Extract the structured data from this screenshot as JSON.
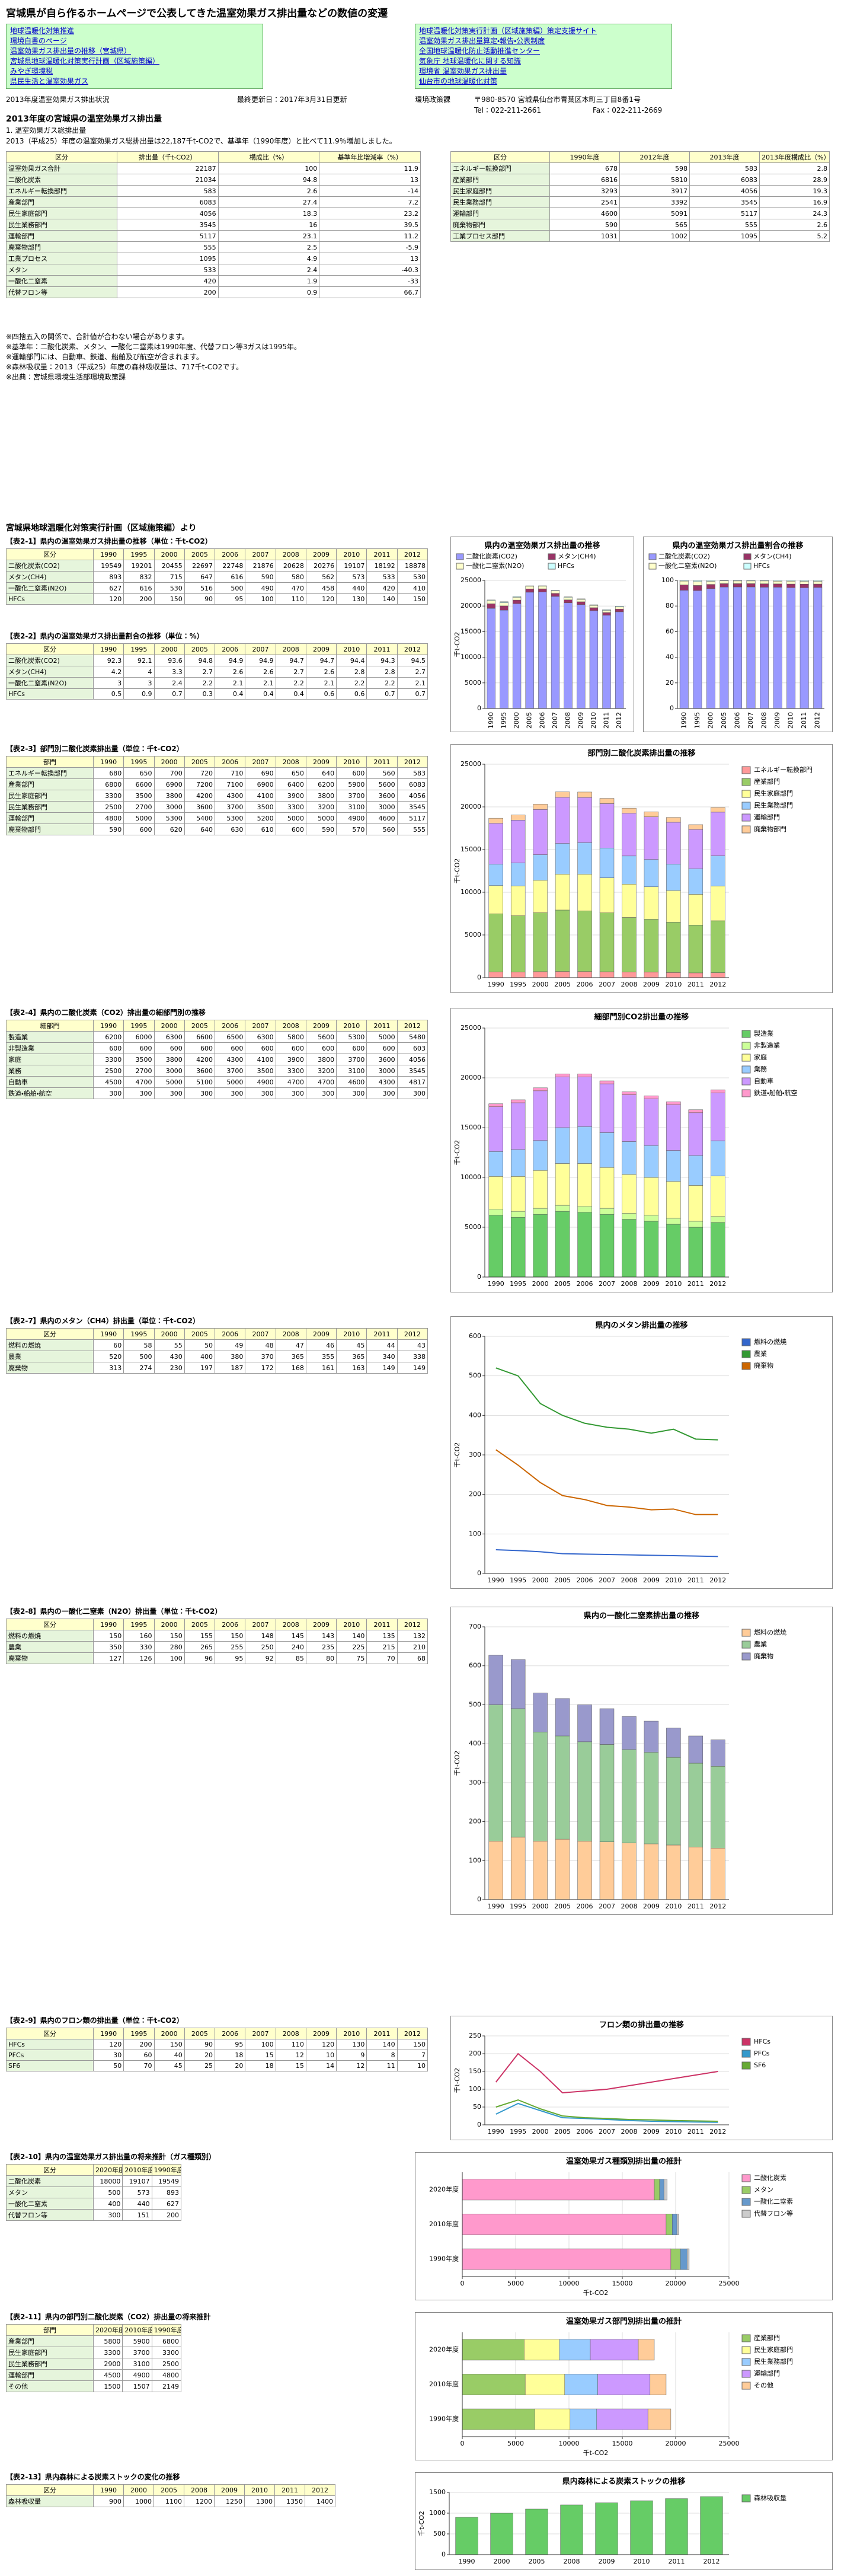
{
  "header": {
    "title": "宮城県が自ら作るホームページで公表してきた温室効果ガス排出量などの数値の変遷"
  },
  "links": {
    "left": [
      "地球温暖化対策推進",
      "環境白書のページ",
      "温室効果ガス排出量の推移（宮城県）",
      "宮城県地球温暖化対策実行計画（区域施策編）",
      "みやぎ環境税",
      "県民生活と温室効果ガス"
    ],
    "right": [
      "地球温暖化対策実行計画（区域施策編）策定支援サイト",
      "温室効果ガス排出量算定・報告・公表制度",
      "全国地球温暖化防止活動推進センター",
      "気象庁 地球温暖化に関する知識",
      "環境省 温室効果ガス排出量",
      "仙台市の地球温暖化対策"
    ]
  },
  "info": {
    "page": "2013年度温室効果ガス排出状況",
    "updated": "最終更新日：2017年3月31日更新",
    "division": "環境政策課",
    "address": "〒980-8570 宮城県仙台市青葉区本町三丁目8番1号",
    "tel": "Tel：022-211-2661",
    "fax": "Fax：022-211-2669",
    "heading": "2013年度の宮城県の温室効果ガス排出量",
    "subheading": "1. 温室効果ガス総排出量",
    "intro": "2013（平成25）年度の温室効果ガス総排出量は22,187千t-CO2で、基準年（1990年度）と比べて11.9％増加しました。",
    "notes": [
      "※四捨五入の関係で、合計値が合わない場合があります。",
      "※基準年：二酸化炭素、メタン、一酸化二窒素は1990年度、代替フロン等3ガスは1995年。",
      "※運輸部門には、自動車、鉄道、船舶及び航空が含まれます。",
      "※森林吸収量：2013（平成25）年度の森林吸収量は、717千t-CO2です。",
      "※出典：宮城県環境生活部環境政策課"
    ],
    "plan": "宮城県地球温暖化対策実行計画（区域施策編）より"
  },
  "summary": {
    "columns": [
      "区分",
      "排出量（千t-CO2）",
      "構成比（%）",
      "基準年比増減率（%）"
    ],
    "rows": [
      [
        "温室効果ガス合計",
        22187,
        100.0,
        11.9
      ],
      [
        "二酸化炭素",
        21034,
        94.8,
        13.0
      ],
      [
        "エネルギー転換部門",
        583,
        2.6,
        -14.0
      ],
      [
        "産業部門",
        6083,
        27.4,
        7.2
      ],
      [
        "民生家庭部門",
        4056,
        18.3,
        23.2
      ],
      [
        "民生業務部門",
        3545,
        16.0,
        39.5
      ],
      [
        "運輸部門",
        5117,
        23.1,
        11.2
      ],
      [
        "廃棄物部門",
        555,
        2.5,
        -5.9
      ],
      [
        "工業プロセス",
        1095,
        4.9,
        13.0
      ],
      [
        "メタン",
        533,
        2.4,
        -40.3
      ],
      [
        "一酸化二窒素",
        420,
        1.9,
        -33.0
      ],
      [
        "代替フロン等",
        200,
        0.9,
        66.7
      ]
    ]
  },
  "summary2": {
    "columns": [
      "区分",
      "1990年度",
      "2012年度",
      "2013年度",
      "2013年度構成比（%）"
    ],
    "rows": [
      [
        "エネルギー転換部門",
        678,
        598,
        583,
        2.8
      ],
      [
        "産業部門",
        6816,
        5810,
        6083,
        28.9
      ],
      [
        "民生家庭部門",
        3293,
        3917,
        4056,
        19.3
      ],
      [
        "民生業務部門",
        2541,
        3392,
        3545,
        16.9
      ],
      [
        "運輸部門",
        4600,
        5091,
        5117,
        24.3
      ],
      [
        "廃棄物部門",
        590,
        565,
        555,
        2.6
      ],
      [
        "工業プロセス部門",
        1031,
        1002,
        1095,
        5.2
      ]
    ]
  },
  "sections": [
    {
      "title": "【表2-1】県内の温室効果ガス排出量の推移（単位：千t-CO2）",
      "corner": "区分"
    },
    {
      "title": "【表2-2】県内の温室効果ガス排出量割合の推移（単位：%）",
      "corner": "区分"
    },
    {
      "title": "【表2-3】部門別二酸化炭素排出量（単位：千t-CO2）",
      "corner": "部門"
    },
    {
      "title": "【表2-4】県内の二酸化炭素（CO2）排出量の細部門別の推移",
      "corner": "細部門"
    },
    {
      "title": "【表2-7】県内のメタン（CH4）排出量（単位：千t-CO2）",
      "corner": "区分"
    },
    {
      "title": "【表2-8】県内の一酸化二窒素（N2O）排出量（単位：千t-CO2）",
      "corner": "区分"
    },
    {
      "title": "【表2-9】県内のフロン類の排出量（単位：千t-CO2）",
      "corner": "区分"
    },
    {
      "title": "【表2-10】県内の温室効果ガス排出量の将来推計（ガス種類別）",
      "corner": "区分"
    },
    {
      "title": "【表2-11】県内の部門別二酸化炭素（CO2）排出量の将来推計",
      "corner": "部門"
    },
    {
      "title": "【表2-13】県内森林による炭素ストックの変化の推移",
      "corner": "区分"
    }
  ],
  "chart_data": [
    {
      "type": "bar",
      "title": "県内の温室効果ガス排出量の推移",
      "ylabel": "千t-CO2",
      "grid": true,
      "categories": [
        "1990",
        "1995",
        "2000",
        "2005",
        "2006",
        "2007",
        "2008",
        "2009",
        "2010",
        "2011",
        "2012"
      ],
      "ylim": [
        0,
        25000
      ],
      "yticks": [
        0,
        5000,
        10000,
        15000,
        20000,
        25000
      ],
      "series": [
        {
          "name": "二酸化炭素(CO2)",
          "color": "#9999ff",
          "values": [
            19549,
            19201,
            20455,
            22697,
            22748,
            21876,
            20628,
            20276,
            19107,
            18192,
            18878
          ]
        },
        {
          "name": "メタン(CH4)",
          "color": "#993366",
          "values": [
            893,
            832,
            715,
            647,
            616,
            590,
            580,
            562,
            573,
            533,
            530
          ]
        },
        {
          "name": "一酸化二窒素(N2O)",
          "color": "#ffffcc",
          "values": [
            627,
            616,
            530,
            516,
            500,
            490,
            470,
            458,
            440,
            420,
            410
          ]
        },
        {
          "name": "HFCs",
          "color": "#ccffff",
          "values": [
            120,
            200,
            150,
            90,
            95,
            100,
            110,
            120,
            130,
            140,
            150
          ]
        }
      ]
    },
    {
      "type": "bar",
      "title": "県内の温室効果ガス排出量割合の推移",
      "grid": true,
      "categories": [
        "1990",
        "1995",
        "2000",
        "2005",
        "2006",
        "2007",
        "2008",
        "2009",
        "2010",
        "2011",
        "2012"
      ],
      "ylim": [
        0,
        100
      ],
      "yticks": [
        0,
        20,
        40,
        60,
        80,
        100
      ],
      "series": [
        {
          "name": "二酸化炭素(CO2)",
          "color": "#9999ff",
          "values": [
            92.3,
            92.1,
            93.6,
            94.8,
            94.9,
            94.9,
            94.7,
            94.7,
            94.4,
            94.3,
            94.5
          ]
        },
        {
          "name": "メタン(CH4)",
          "color": "#993366",
          "values": [
            4.2,
            4.0,
            3.3,
            2.7,
            2.6,
            2.6,
            2.7,
            2.6,
            2.8,
            2.8,
            2.7
          ]
        },
        {
          "name": "一酸化二窒素(N2O)",
          "color": "#ffffcc",
          "values": [
            3.0,
            3.0,
            2.4,
            2.2,
            2.1,
            2.1,
            2.2,
            2.1,
            2.2,
            2.2,
            2.1
          ]
        },
        {
          "name": "HFCs",
          "color": "#ccffff",
          "values": [
            0.5,
            0.9,
            0.7,
            0.3,
            0.4,
            0.4,
            0.4,
            0.6,
            0.6,
            0.7,
            0.7
          ]
        }
      ]
    },
    {
      "type": "bar",
      "title": "部門別二酸化炭素排出量の推移",
      "ylabel": "千t-CO2",
      "grid": true,
      "categories": [
        "1990",
        "1995",
        "2000",
        "2005",
        "2006",
        "2007",
        "2008",
        "2009",
        "2010",
        "2011",
        "2012"
      ],
      "ylim": [
        0,
        25000
      ],
      "yticks": [
        0,
        5000,
        10000,
        15000,
        20000,
        25000
      ],
      "series": [
        {
          "name": "エネルギー転換部門",
          "color": "#ff9999",
          "values": [
            680,
            650,
            700,
            720,
            710,
            690,
            650,
            640,
            600,
            560,
            583
          ]
        },
        {
          "name": "産業部門",
          "color": "#99cc66",
          "values": [
            6800,
            6600,
            6900,
            7200,
            7100,
            6900,
            6400,
            6200,
            5900,
            5600,
            6083
          ]
        },
        {
          "name": "民生家庭部門",
          "color": "#ffff99",
          "values": [
            3300,
            3500,
            3800,
            4200,
            4300,
            4100,
            3900,
            3800,
            3700,
            3600,
            4056
          ]
        },
        {
          "name": "民生業務部門",
          "color": "#99ccff",
          "values": [
            2500,
            2700,
            3000,
            3600,
            3700,
            3500,
            3300,
            3200,
            3100,
            3000,
            3545
          ]
        },
        {
          "name": "運輸部門",
          "color": "#cc99ff",
          "values": [
            4800,
            5000,
            5300,
            5400,
            5300,
            5200,
            5000,
            5000,
            4900,
            4600,
            5117
          ]
        },
        {
          "name": "廃棄物部門",
          "color": "#ffcc99",
          "values": [
            590,
            600,
            620,
            640,
            630,
            610,
            600,
            590,
            570,
            560,
            555
          ]
        }
      ]
    },
    {
      "type": "bar",
      "title": "細部門別CO2排出量の推移",
      "ylabel": "千t-CO2",
      "grid": true,
      "categories": [
        "1990",
        "1995",
        "2000",
        "2005",
        "2006",
        "2007",
        "2008",
        "2009",
        "2010",
        "2011",
        "2012"
      ],
      "ylim": [
        0,
        25000
      ],
      "yticks": [
        0,
        5000,
        10000,
        15000,
        20000,
        25000
      ],
      "series": [
        {
          "name": "製造業",
          "color": "#66cc66",
          "values": [
            6200,
            6000,
            6300,
            6600,
            6500,
            6300,
            5800,
            5600,
            5300,
            5000,
            5480
          ]
        },
        {
          "name": "非製造業",
          "color": "#ccff99",
          "values": [
            600,
            600,
            600,
            600,
            600,
            600,
            600,
            600,
            600,
            600,
            603
          ]
        },
        {
          "name": "家庭",
          "color": "#ffff99",
          "values": [
            3300,
            3500,
            3800,
            4200,
            4300,
            4100,
            3900,
            3800,
            3700,
            3600,
            4056
          ]
        },
        {
          "name": "業務",
          "color": "#99ccff",
          "values": [
            2500,
            2700,
            3000,
            3600,
            3700,
            3500,
            3300,
            3200,
            3100,
            3000,
            3545
          ]
        },
        {
          "name": "自動車",
          "color": "#cc99ff",
          "values": [
            4500,
            4700,
            5000,
            5100,
            5000,
            4900,
            4700,
            4700,
            4600,
            4300,
            4817
          ]
        },
        {
          "name": "鉄道・船舶・航空",
          "color": "#ff99cc",
          "values": [
            300,
            300,
            300,
            300,
            300,
            300,
            300,
            300,
            300,
            300,
            300
          ]
        }
      ]
    },
    {
      "type": "line",
      "title": "県内のメタン排出量の推移",
      "ylabel": "千t-CO2",
      "grid": true,
      "categories": [
        "1990",
        "1995",
        "2000",
        "2005",
        "2006",
        "2007",
        "2008",
        "2009",
        "2010",
        "2011",
        "2012"
      ],
      "ylim": [
        0,
        600
      ],
      "yticks": [
        0,
        100,
        200,
        300,
        400,
        500,
        600
      ],
      "series": [
        {
          "name": "燃料の燃焼",
          "color": "#3366cc",
          "values": [
            60,
            58,
            55,
            50,
            49,
            48,
            47,
            46,
            45,
            44,
            43
          ]
        },
        {
          "name": "農業",
          "color": "#339933",
          "values": [
            520,
            500,
            430,
            400,
            380,
            370,
            365,
            355,
            365,
            340,
            338
          ]
        },
        {
          "name": "廃棄物",
          "color": "#cc6600",
          "values": [
            313,
            274,
            230,
            197,
            187,
            172,
            168,
            161,
            163,
            149,
            149
          ]
        }
      ]
    },
    {
      "type": "bar",
      "title": "県内の一酸化二窒素排出量の推移",
      "ylabel": "千t-CO2",
      "grid": true,
      "categories": [
        "1990",
        "1995",
        "2000",
        "2005",
        "2006",
        "2007",
        "2008",
        "2009",
        "2010",
        "2011",
        "2012"
      ],
      "ylim": [
        0,
        700
      ],
      "yticks": [
        0,
        100,
        200,
        300,
        400,
        500,
        600,
        700
      ],
      "series": [
        {
          "name": "燃料の燃焼",
          "color": "#ffcc99",
          "values": [
            150,
            160,
            150,
            155,
            150,
            148,
            145,
            143,
            140,
            135,
            132
          ]
        },
        {
          "name": "農業",
          "color": "#99cc99",
          "values": [
            350,
            330,
            280,
            265,
            255,
            250,
            240,
            235,
            225,
            215,
            210
          ]
        },
        {
          "name": "廃棄物",
          "color": "#9999cc",
          "values": [
            127,
            126,
            100,
            96,
            95,
            92,
            85,
            80,
            75,
            70,
            68
          ]
        }
      ]
    },
    {
      "type": "line",
      "title": "フロン類の排出量の推移",
      "ylabel": "千t-CO2",
      "grid": true,
      "categories": [
        "1990",
        "1995",
        "2000",
        "2005",
        "2006",
        "2007",
        "2008",
        "2009",
        "2010",
        "2011",
        "2012"
      ],
      "ylim": [
        0,
        250
      ],
      "yticks": [
        0,
        50,
        100,
        150,
        200,
        250
      ],
      "series": [
        {
          "name": "HFCs",
          "color": "#cc3366",
          "values": [
            120,
            200,
            150,
            90,
            95,
            100,
            110,
            120,
            130,
            140,
            150
          ]
        },
        {
          "name": "PFCs",
          "color": "#3399cc",
          "values": [
            30,
            60,
            40,
            20,
            18,
            15,
            12,
            10,
            9,
            8,
            7
          ]
        },
        {
          "name": "SF6",
          "color": "#66aa33",
          "values": [
            50,
            70,
            45,
            25,
            20,
            18,
            15,
            14,
            12,
            11,
            10
          ]
        }
      ]
    },
    {
      "type": "hbar",
      "title": "温室効果ガス種類別排出量の推計",
      "xlabel": "千t-CO2",
      "grid": true,
      "categories": [
        "2020年度",
        "2010年度",
        "1990年度"
      ],
      "xlim": [
        0,
        25000
      ],
      "xticks": [
        0,
        5000,
        10000,
        15000,
        20000,
        25000
      ],
      "series": [
        {
          "name": "二酸化炭素",
          "color": "#ff99cc",
          "values": [
            18000,
            19107,
            19549
          ]
        },
        {
          "name": "メタン",
          "color": "#99cc66",
          "values": [
            500,
            573,
            893
          ]
        },
        {
          "name": "一酸化二窒素",
          "color": "#6699cc",
          "values": [
            400,
            440,
            627
          ]
        },
        {
          "name": "代替フロン等",
          "color": "#cccccc",
          "values": [
            300,
            151,
            200
          ]
        }
      ]
    },
    {
      "type": "hbar",
      "title": "温室効果ガス部門別排出量の推計",
      "xlabel": "千t-CO2",
      "grid": true,
      "categories": [
        "2020年度",
        "2010年度",
        "1990年度"
      ],
      "xlim": [
        0,
        25000
      ],
      "xticks": [
        0,
        5000,
        10000,
        15000,
        20000,
        25000
      ],
      "series": [
        {
          "name": "産業部門",
          "color": "#99cc66",
          "values": [
            5800,
            5900,
            6800
          ]
        },
        {
          "name": "民生家庭部門",
          "color": "#ffff99",
          "values": [
            3300,
            3700,
            3300
          ]
        },
        {
          "name": "民生業務部門",
          "color": "#99ccff",
          "values": [
            2900,
            3100,
            2500
          ]
        },
        {
          "name": "運輸部門",
          "color": "#cc99ff",
          "values": [
            4500,
            4900,
            4800
          ]
        },
        {
          "name": "その他",
          "color": "#ffcc99",
          "values": [
            1500,
            1507,
            2149
          ]
        }
      ]
    },
    {
      "type": "bar",
      "title": "県内森林による炭素ストックの推移",
      "ylabel": "千t-CO2",
      "grid": true,
      "categories": [
        "1990",
        "2000",
        "2005",
        "2008",
        "2009",
        "2010",
        "2011",
        "2012"
      ],
      "ylim": [
        0,
        1500
      ],
      "yticks": [
        0,
        500,
        1000,
        1500
      ],
      "series": [
        {
          "name": "森林吸収量",
          "color": "#66cc66",
          "values": [
            900,
            1000,
            1100,
            1200,
            1250,
            1300,
            1350,
            1400
          ]
        }
      ]
    }
  ]
}
